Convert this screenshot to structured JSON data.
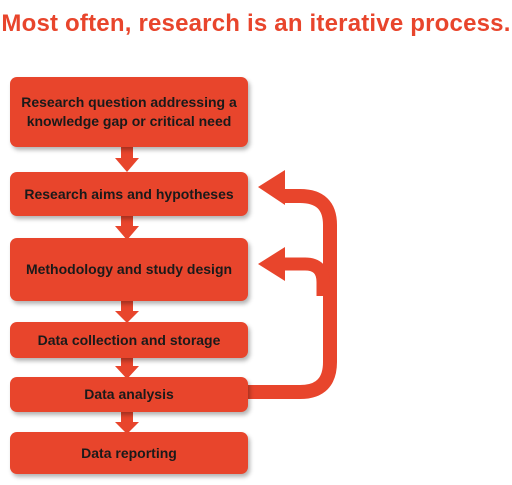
{
  "title": "Most often, research is an iterative process.",
  "steps": [
    "Research question addressing a knowledge gap or critical need",
    "Research aims and hypotheses",
    "Methodology and study design",
    "Data collection and storage",
    "Data analysis",
    "Data reporting"
  ],
  "colors": {
    "accent": "#e8452c",
    "text": "#1a1a1a"
  }
}
